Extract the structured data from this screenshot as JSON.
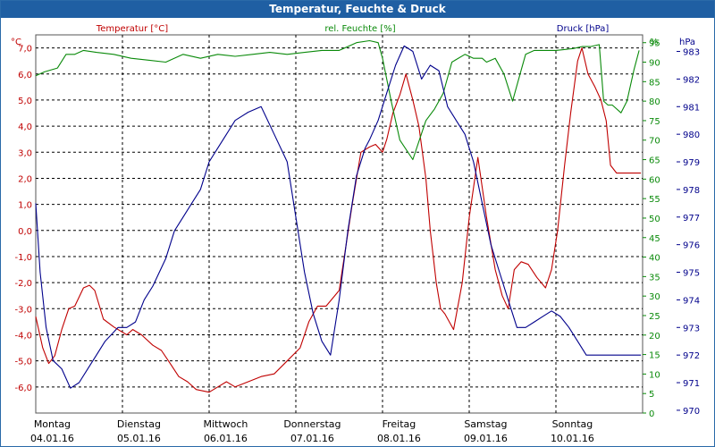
{
  "chart_data": {
    "type": "line",
    "title": "Temperatur, Feuchte & Druck",
    "legend": [
      "Temperatur [°C]",
      "rel. Feuchte [%]",
      "Druck [hPa]"
    ],
    "axes": {
      "temperature": {
        "unit": "°C",
        "range": [
          -7.0,
          7.5
        ],
        "ticks": [
          "7,0",
          "6,0",
          "5,0",
          "4,0",
          "3,0",
          "2,0",
          "1,0",
          "0,0",
          "-1,0",
          "-2,0",
          "-3,0",
          "-4,0",
          "-5,0",
          "-6,0"
        ],
        "tick_values": [
          7,
          6,
          5,
          4,
          3,
          2,
          1,
          0,
          -1,
          -2,
          -3,
          -4,
          -5,
          -6
        ]
      },
      "humidity": {
        "unit": "%",
        "range": [
          0,
          97
        ],
        "ticks": [
          "95",
          "90",
          "85",
          "80",
          "75",
          "70",
          "65",
          "60",
          "55",
          "50",
          "45",
          "40",
          "35",
          "30",
          "25",
          "20",
          "15",
          "10",
          "5",
          "0"
        ],
        "tick_values": [
          95,
          90,
          85,
          80,
          75,
          70,
          65,
          60,
          55,
          50,
          45,
          40,
          35,
          30,
          25,
          20,
          15,
          10,
          5,
          0
        ]
      },
      "pressure": {
        "unit": "hPa",
        "range": [
          969.9,
          983.6
        ],
        "ticks": [
          "983",
          "982",
          "981",
          "980",
          "979",
          "978",
          "977",
          "976",
          "975",
          "974",
          "973",
          "972",
          "971",
          "970"
        ],
        "tick_values": [
          983,
          982,
          981,
          980,
          979,
          978,
          977,
          976,
          975,
          974,
          973,
          972,
          971,
          970
        ]
      }
    },
    "x_range": [
      0,
      7
    ],
    "days": [
      {
        "name": "Montag",
        "date": "04.01.16"
      },
      {
        "name": "Dienstag",
        "date": "05.01.16"
      },
      {
        "name": "Mittwoch",
        "date": "06.01.16"
      },
      {
        "name": "Donnerstag",
        "date": "07.01.16"
      },
      {
        "name": "Freitag",
        "date": "08.01.16"
      },
      {
        "name": "Samstag",
        "date": "09.01.16"
      },
      {
        "name": "Sonntag",
        "date": "10.01.16"
      }
    ],
    "series": [
      {
        "name": "Temperatur",
        "axis": "temperature",
        "color": "#c00000",
        "x": [
          0,
          0.08,
          0.15,
          0.22,
          0.3,
          0.38,
          0.45,
          0.55,
          0.62,
          0.68,
          0.78,
          0.9,
          1.05,
          1.12,
          1.22,
          1.35,
          1.45,
          1.55,
          1.65,
          1.75,
          1.85,
          2.0,
          2.1,
          2.2,
          2.3,
          2.45,
          2.6,
          2.75,
          2.9,
          3.05,
          3.15,
          3.25,
          3.35,
          3.5,
          3.65,
          3.75,
          3.85,
          3.92,
          4.0,
          4.05,
          4.12,
          4.2,
          4.27,
          4.35,
          4.42,
          4.5,
          4.55,
          4.62,
          4.67,
          4.72,
          4.82,
          4.92,
          5.0,
          5.1,
          5.2,
          5.3,
          5.38,
          5.45,
          5.52,
          5.6,
          5.68,
          5.78,
          5.88,
          5.95,
          6.02,
          6.1,
          6.17,
          6.25,
          6.3,
          6.37,
          6.45,
          6.52,
          6.58,
          6.63,
          6.7,
          6.77,
          6.82,
          6.87,
          6.93,
          6.98
        ],
        "y": [
          -3.3,
          -4.5,
          -5.1,
          -4.8,
          -3.8,
          -3.0,
          -2.9,
          -2.2,
          -2.1,
          -2.3,
          -3.4,
          -3.7,
          -4.0,
          -3.8,
          -4.0,
          -4.4,
          -4.6,
          -5.1,
          -5.6,
          -5.8,
          -6.1,
          -6.2,
          -6.0,
          -5.8,
          -6.0,
          -5.8,
          -5.6,
          -5.5,
          -5.0,
          -4.5,
          -3.5,
          -2.9,
          -2.9,
          -2.3,
          1.0,
          3.0,
          3.2,
          3.3,
          3.0,
          3.5,
          4.5,
          5.2,
          6.0,
          5.0,
          4.0,
          2.0,
          0.0,
          -2.0,
          -3.0,
          -3.2,
          -3.8,
          -2.0,
          0.5,
          2.8,
          0.5,
          -1.5,
          -2.5,
          -3.0,
          -1.5,
          -1.2,
          -1.3,
          -1.8,
          -2.2,
          -1.5,
          0.0,
          2.5,
          4.5,
          6.5,
          7.0,
          6.0,
          5.5,
          5.0,
          4.2,
          2.5,
          2.2,
          2.2,
          2.2,
          2.2,
          2.2,
          2.2
        ]
      },
      {
        "name": "rel. Feuchte",
        "axis": "humidity",
        "color": "#0a8a0a",
        "x": [
          0,
          0.1,
          0.25,
          0.35,
          0.45,
          0.55,
          0.7,
          0.9,
          1.1,
          1.3,
          1.5,
          1.7,
          1.9,
          2.1,
          2.3,
          2.5,
          2.7,
          2.9,
          3.1,
          3.3,
          3.5,
          3.7,
          3.85,
          3.95,
          4.0,
          4.1,
          4.2,
          4.35,
          4.5,
          4.6,
          4.7,
          4.8,
          4.95,
          5.05,
          5.15,
          5.2,
          5.3,
          5.4,
          5.5,
          5.6,
          5.65,
          5.75,
          5.85,
          6.0,
          6.2,
          6.3,
          6.4,
          6.5,
          6.55,
          6.6,
          6.65,
          6.75,
          6.82,
          6.9,
          6.96
        ],
        "y": [
          86.5,
          87.5,
          88.5,
          92,
          92,
          93,
          92.5,
          92,
          91,
          90.5,
          90,
          92,
          91,
          92,
          91.5,
          92,
          92.5,
          92,
          92.5,
          93,
          93,
          95,
          95.5,
          95,
          91,
          80,
          70,
          65,
          75,
          78,
          82,
          90,
          92,
          91,
          91,
          90,
          91,
          87,
          80,
          88,
          92,
          93,
          93,
          93,
          93.5,
          94,
          94,
          94.5,
          80,
          79,
          79,
          77,
          80,
          88,
          93
        ]
      },
      {
        "name": "Druck",
        "axis": "pressure",
        "color": "#00008b",
        "x": [
          0,
          0.05,
          0.12,
          0.2,
          0.3,
          0.4,
          0.5,
          0.6,
          0.7,
          0.8,
          0.95,
          1.05,
          1.15,
          1.25,
          1.35,
          1.5,
          1.6,
          1.7,
          1.8,
          1.9,
          2.0,
          2.1,
          2.2,
          2.3,
          2.45,
          2.6,
          2.75,
          2.9,
          3.0,
          3.1,
          3.2,
          3.3,
          3.4,
          3.5,
          3.6,
          3.7,
          3.8,
          3.85,
          3.95,
          4.05,
          4.15,
          4.25,
          4.35,
          4.45,
          4.55,
          4.65,
          4.75,
          4.85,
          4.95,
          5.05,
          5.15,
          5.25,
          5.35,
          5.45,
          5.55,
          5.65,
          5.75,
          5.85,
          5.95,
          6.05,
          6.15,
          6.25,
          6.35,
          6.45,
          6.55,
          6.62,
          6.7,
          6.78,
          6.85,
          6.92,
          6.98
        ],
        "y": [
          977.5,
          975,
          973,
          971.8,
          971.5,
          970.8,
          971,
          971.5,
          972,
          972.5,
          973,
          973,
          973.2,
          974,
          974.5,
          975.5,
          976.5,
          977,
          977.5,
          978,
          979,
          979.5,
          980,
          980.5,
          980.8,
          981,
          980,
          979,
          977,
          975,
          973.5,
          972.5,
          972,
          974,
          976.5,
          978.5,
          979.5,
          979.8,
          980.5,
          981.5,
          982.5,
          983.2,
          983,
          982,
          982.5,
          982.3,
          981,
          980.5,
          980,
          979,
          977.5,
          976,
          975,
          974,
          973,
          973,
          973.2,
          973.4,
          973.6,
          973.4,
          973,
          972.5,
          972,
          972,
          972,
          972,
          972,
          972,
          972,
          972,
          972
        ]
      }
    ]
  }
}
